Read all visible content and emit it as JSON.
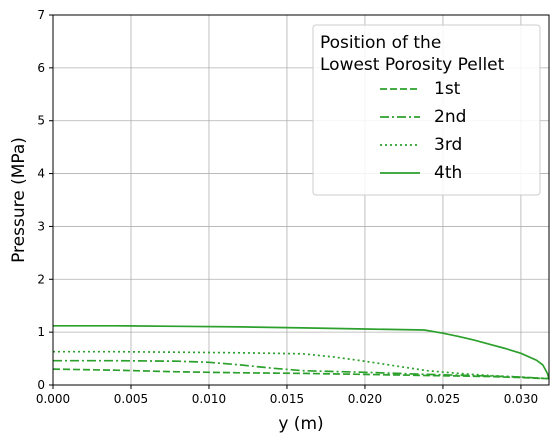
{
  "chart_data": {
    "type": "line",
    "xlabel": "y (m)",
    "ylabel": "Pressure (MPa)",
    "xlim": [
      0,
      0.0318
    ],
    "ylim": [
      0,
      7
    ],
    "xticks": [
      "0.000",
      "0.005",
      "0.010",
      "0.015",
      "0.020",
      "0.025",
      "0.030"
    ],
    "xtick_values": [
      0,
      0.005,
      0.01,
      0.015,
      0.02,
      0.025,
      0.03
    ],
    "yticks": [
      "0",
      "1",
      "2",
      "3",
      "4",
      "5",
      "6",
      "7"
    ],
    "ytick_values": [
      0,
      1,
      2,
      3,
      4,
      5,
      6,
      7
    ],
    "grid": true,
    "legend": {
      "placement": "top-right",
      "title_lines": [
        "Position of the",
        "Lowest Porosity Pellet"
      ]
    },
    "color": "#2ca02c",
    "series": [
      {
        "name": "1st",
        "dash": "dashed",
        "x": [
          0,
          0.004,
          0.008,
          0.012,
          0.016,
          0.02,
          0.024,
          0.028,
          0.03,
          0.0318
        ],
        "y": [
          0.3,
          0.28,
          0.25,
          0.23,
          0.22,
          0.2,
          0.18,
          0.16,
          0.14,
          0.12
        ]
      },
      {
        "name": "2nd",
        "dash": "dashdot",
        "x": [
          0,
          0.004,
          0.008,
          0.01,
          0.012,
          0.014,
          0.016,
          0.02,
          0.024,
          0.028,
          0.03,
          0.0318
        ],
        "y": [
          0.46,
          0.46,
          0.45,
          0.43,
          0.38,
          0.32,
          0.27,
          0.24,
          0.2,
          0.17,
          0.15,
          0.12
        ]
      },
      {
        "name": "3rd",
        "dash": "dotted",
        "x": [
          0,
          0.004,
          0.008,
          0.012,
          0.016,
          0.018,
          0.02,
          0.022,
          0.024,
          0.026,
          0.028,
          0.03,
          0.0318
        ],
        "y": [
          0.63,
          0.63,
          0.62,
          0.61,
          0.59,
          0.53,
          0.45,
          0.36,
          0.27,
          0.22,
          0.18,
          0.15,
          0.12
        ]
      },
      {
        "name": "4th",
        "dash": "solid",
        "x": [
          0,
          0.004,
          0.008,
          0.012,
          0.016,
          0.02,
          0.0238,
          0.025,
          0.026,
          0.027,
          0.028,
          0.029,
          0.03,
          0.031,
          0.0314,
          0.0317,
          0.0318
        ],
        "y": [
          1.12,
          1.12,
          1.11,
          1.1,
          1.08,
          1.06,
          1.04,
          0.98,
          0.92,
          0.85,
          0.77,
          0.69,
          0.6,
          0.47,
          0.38,
          0.22,
          0.12
        ]
      }
    ]
  }
}
